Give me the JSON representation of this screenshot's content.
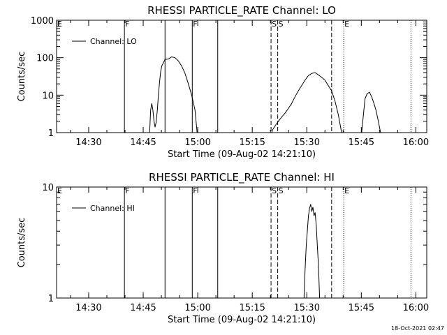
{
  "footer": {
    "timestamp": "18-Oct-2021 02:47"
  },
  "colors": {
    "background": "#ffffff",
    "foreground": "#000000"
  },
  "chart_data": [
    {
      "type": "line",
      "title": "RHESSI PARTICLE_RATE Channel: LO",
      "xlabel": "Start Time (09-Aug-02 14:21:10)",
      "ylabel": "Counts/sec",
      "yscale": "log",
      "xlim": [
        "14:21:10",
        "16:03:00"
      ],
      "ylim": [
        1,
        1000
      ],
      "xticks": [
        "14:30",
        "14:45",
        "15:00",
        "15:15",
        "15:30",
        "15:45",
        "16:00"
      ],
      "yticks": [
        "1",
        "10",
        "100",
        "1000"
      ],
      "legend": {
        "label": "Channel: LO",
        "placement": "top-left"
      },
      "series": [
        {
          "name": "Channel: LO",
          "segments": [
            [
              [
                "14:46:45",
                1
              ],
              [
                "14:47:03",
                4
              ],
              [
                "14:47:21",
                6
              ],
              [
                "14:47:40",
                4
              ],
              [
                "14:47:58",
                2
              ],
              [
                "14:48:16",
                1.4
              ],
              [
                "14:48:34",
                1.9
              ],
              [
                "14:48:53",
                4
              ],
              [
                "14:49:11",
                10
              ],
              [
                "14:49:29",
                22
              ],
              [
                "14:49:48",
                42
              ],
              [
                "14:50:06",
                60
              ],
              [
                "14:50:24",
                68
              ],
              [
                "14:51:00",
                90
              ],
              [
                "14:51:55",
                92
              ],
              [
                "14:52:50",
                105
              ],
              [
                "14:53:45",
                100
              ],
              [
                "14:54:40",
                82
              ],
              [
                "14:55:35",
                60
              ],
              [
                "14:56:30",
                38
              ],
              [
                "14:57:25",
                20
              ],
              [
                "14:58:20",
                10
              ],
              [
                "14:59:15",
                4
              ],
              [
                "14:59:50",
                1
              ]
            ],
            [
              [
                "15:20:20",
                1
              ],
              [
                "15:20:38",
                1.2
              ],
              [
                "15:21:15",
                1.5
              ],
              [
                "15:22:10",
                2
              ],
              [
                "15:23:05",
                2.6
              ],
              [
                "15:24:00",
                3.3
              ],
              [
                "15:24:55",
                4.4
              ],
              [
                "15:25:50",
                6
              ],
              [
                "15:26:45",
                9
              ],
              [
                "15:27:40",
                13
              ],
              [
                "15:28:35",
                18
              ],
              [
                "15:29:30",
                25
              ],
              [
                "15:30:25",
                33
              ],
              [
                "15:31:20",
                38
              ],
              [
                "15:32:15",
                40
              ],
              [
                "15:33:10",
                35
              ],
              [
                "15:34:05",
                30
              ],
              [
                "15:35:00",
                25
              ],
              [
                "15:35:55",
                18
              ],
              [
                "15:36:50",
                13
              ],
              [
                "15:37:45",
                7
              ],
              [
                "15:38:40",
                3
              ],
              [
                "15:39:35",
                1
              ]
            ],
            [
              [
                "15:45:06",
                1
              ],
              [
                "15:45:24",
                2
              ],
              [
                "15:45:43",
                4
              ],
              [
                "15:46:01",
                8
              ],
              [
                "15:46:38",
                11
              ],
              [
                "15:47:15",
                12
              ],
              [
                "15:47:51",
                9
              ],
              [
                "15:48:28",
                6
              ],
              [
                "15:49:05",
                3.8
              ],
              [
                "15:49:41",
                2
              ],
              [
                "15:50:18",
                1
              ]
            ]
          ]
        }
      ],
      "markers": [
        {
          "label": "E",
          "time": "14:21:10",
          "style": "dotted",
          "show_line": false
        },
        {
          "label": "F",
          "time": "14:39:50",
          "style": "solid",
          "show_line": true
        },
        {
          "label": "",
          "time": "14:51:00",
          "style": "solid",
          "show_line": true
        },
        {
          "label": "F",
          "time": "14:58:30",
          "style": "solid",
          "show_line": true
        },
        {
          "label": "",
          "time": "15:05:30",
          "style": "solid",
          "show_line": true
        },
        {
          "label": "S",
          "time": "15:20:10",
          "style": "dashed",
          "show_line": true
        },
        {
          "label": "S",
          "time": "15:22:00",
          "style": "dashed",
          "show_line": true
        },
        {
          "label": "",
          "time": "15:36:50",
          "style": "dashed",
          "show_line": true
        },
        {
          "label": "E",
          "time": "15:40:10",
          "style": "dotted",
          "show_line": true
        },
        {
          "label": "",
          "time": "15:58:40",
          "style": "dotted",
          "show_line": true
        }
      ]
    },
    {
      "type": "line",
      "title": "RHESSI PARTICLE_RATE Channel: HI",
      "xlabel": "Start Time (09-Aug-02 14:21:10)",
      "ylabel": "Counts/sec",
      "yscale": "log",
      "xlim": [
        "14:21:10",
        "16:03:00"
      ],
      "ylim": [
        1,
        10
      ],
      "xticks": [
        "14:30",
        "14:45",
        "15:00",
        "15:15",
        "15:30",
        "15:45",
        "16:00"
      ],
      "yticks": [
        "1",
        "10"
      ],
      "legend": {
        "label": "Channel: HI",
        "placement": "top-left"
      },
      "series": [
        {
          "name": "Channel: HI",
          "segments": [
            [
              [
                "15:29:14",
                1
              ],
              [
                "15:29:32",
                1.8
              ],
              [
                "15:29:51",
                3
              ],
              [
                "15:30:09",
                4
              ],
              [
                "15:30:27",
                5.5
              ],
              [
                "15:30:46",
                6.4
              ],
              [
                "15:31:04",
                7
              ],
              [
                "15:31:23",
                6
              ],
              [
                "15:31:41",
                6.6
              ],
              [
                "15:31:59",
                5.5
              ],
              [
                "15:32:18",
                5.9
              ],
              [
                "15:32:36",
                4.5
              ],
              [
                "15:32:54",
                3
              ],
              [
                "15:33:12",
                2
              ],
              [
                "15:33:31",
                1
              ]
            ]
          ]
        }
      ],
      "markers": [
        {
          "label": "E",
          "time": "14:21:10",
          "style": "dotted",
          "show_line": false
        },
        {
          "label": "F",
          "time": "14:39:50",
          "style": "solid",
          "show_line": true
        },
        {
          "label": "",
          "time": "14:51:00",
          "style": "solid",
          "show_line": true
        },
        {
          "label": "F",
          "time": "14:58:30",
          "style": "solid",
          "show_line": true
        },
        {
          "label": "",
          "time": "15:05:30",
          "style": "solid",
          "show_line": true
        },
        {
          "label": "S",
          "time": "15:20:10",
          "style": "dashed",
          "show_line": true
        },
        {
          "label": "S",
          "time": "15:22:00",
          "style": "dashed",
          "show_line": true
        },
        {
          "label": "",
          "time": "15:36:50",
          "style": "dashed",
          "show_line": true
        },
        {
          "label": "E",
          "time": "15:40:10",
          "style": "dotted",
          "show_line": true
        },
        {
          "label": "",
          "time": "15:58:40",
          "style": "dotted",
          "show_line": true
        }
      ]
    }
  ]
}
